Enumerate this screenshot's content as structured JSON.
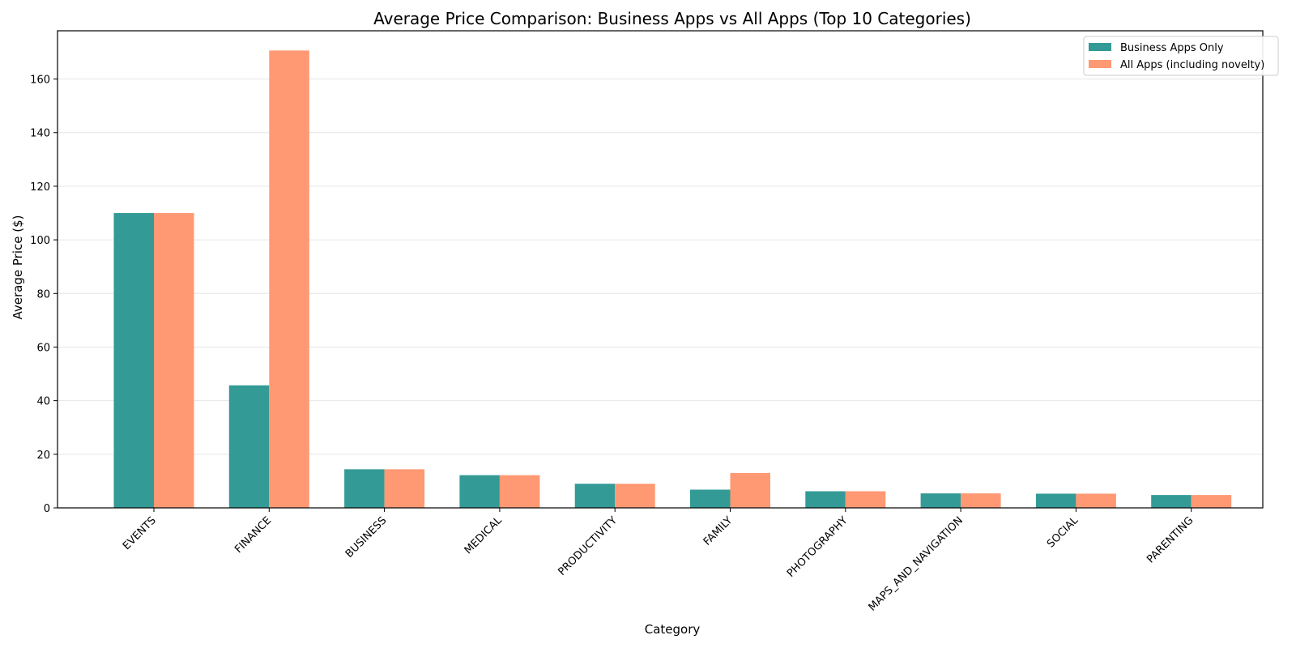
{
  "chart_data": {
    "type": "bar",
    "title": "Average Price Comparison: Business Apps vs All Apps (Top 10 Categories)",
    "xlabel": "Category",
    "ylabel": "Average Price ($)",
    "ylim": [
      0,
      178
    ],
    "yticks": [
      0,
      20,
      40,
      60,
      80,
      100,
      120,
      140,
      160
    ],
    "grid": "horizontal",
    "legend_position": "top-right",
    "categories": [
      "EVENTS",
      "FINANCE",
      "BUSINESS",
      "MEDICAL",
      "PRODUCTIVITY",
      "FAMILY",
      "PHOTOGRAPHY",
      "MAPS_AND_NAVIGATION",
      "SOCIAL",
      "PARENTING"
    ],
    "series": [
      {
        "name": "Business Apps Only",
        "color": "#339a96",
        "values": [
          109.99,
          45.72,
          14.4,
          12.2,
          9.0,
          6.8,
          6.2,
          5.4,
          5.3,
          4.8
        ]
      },
      {
        "name": "All Apps (including novelty)",
        "color": "#ff9973",
        "values": [
          109.99,
          170.64,
          14.4,
          12.2,
          9.0,
          13.0,
          6.2,
          5.4,
          5.3,
          4.8
        ]
      }
    ]
  }
}
